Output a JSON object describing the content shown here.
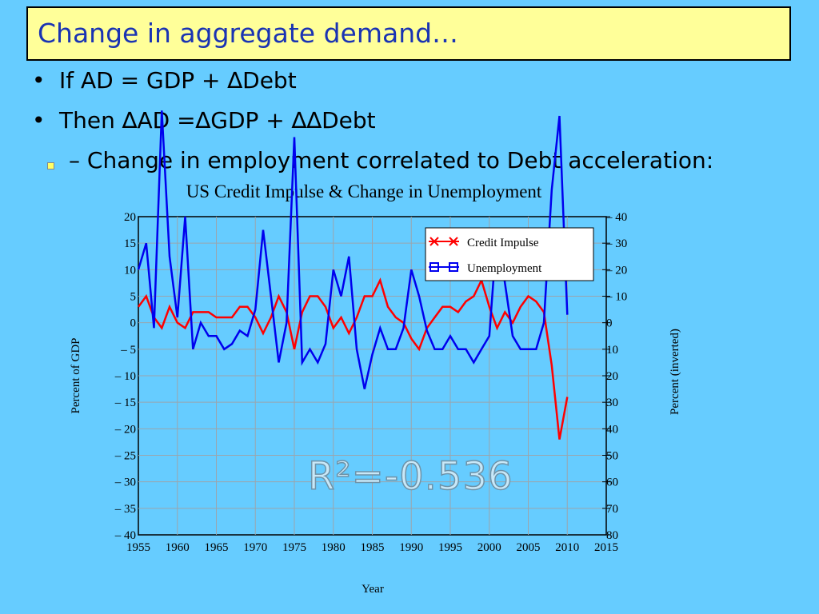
{
  "slide": {
    "title": "Change in aggregate demand…",
    "bullets": [
      "If AD = GDP + ∆Debt",
      "Then ∆AD =∆GDP + ∆∆Debt"
    ],
    "bullet_marker": "•",
    "sub_bullet": "– Change in employment correlated to Debt acceleration:",
    "annotation": "R²=-0.536",
    "colors": {
      "background": "#66ccff",
      "title_box": "#ffff99",
      "title_text": "#1a33b3",
      "credit": "#ff0000",
      "unemployment": "#0000ee",
      "r2": "#c8e8f8"
    }
  },
  "chart_data": {
    "type": "line",
    "title": "US Credit Impulse & Change in Unemployment",
    "xlabel": "Year",
    "ylabel": "Percent of GDP",
    "y2label": "Percent (inverted)",
    "xlim": [
      1955,
      2015
    ],
    "ylim": [
      -40,
      20
    ],
    "y2lim": [
      80,
      -40
    ],
    "x_ticks": [
      "1955",
      "1960",
      "1965",
      "1970",
      "1975",
      "1980",
      "1985",
      "1990",
      "1995",
      "2000",
      "2005",
      "2010",
      "2015"
    ],
    "y_ticks": [
      "20",
      "15",
      "10",
      "5",
      "0",
      "– 5",
      "– 10",
      "– 15",
      "– 20",
      "– 25",
      "– 30",
      "– 35",
      "– 40"
    ],
    "y2_ticks": [
      "– 40",
      "– 30",
      "– 20",
      "– 10",
      "0",
      "10",
      "20",
      "30",
      "40",
      "50",
      "60",
      "70",
      "80"
    ],
    "grid": true,
    "legend_position": "top-right",
    "series": [
      {
        "name": "Credit Impulse",
        "color": "#ff0000",
        "marker": "x",
        "x": [
          1955,
          1956,
          1957,
          1958,
          1959,
          1960,
          1961,
          1962,
          1963,
          1964,
          1965,
          1966,
          1967,
          1968,
          1969,
          1970,
          1971,
          1972,
          1973,
          1974,
          1975,
          1976,
          1977,
          1978,
          1979,
          1980,
          1981,
          1982,
          1983,
          1984,
          1985,
          1986,
          1987,
          1988,
          1989,
          1990,
          1991,
          1992,
          1993,
          1994,
          1995,
          1996,
          1997,
          1998,
          1999,
          2000,
          2001,
          2002,
          2003,
          2004,
          2005,
          2006,
          2007,
          2008,
          2009,
          2010
        ],
        "y": [
          3,
          5,
          1,
          -1,
          3,
          0,
          -1,
          2,
          2,
          2,
          1,
          1,
          1,
          3,
          3,
          1,
          -2,
          1,
          5,
          2,
          -5,
          2,
          5,
          5,
          3,
          -1,
          1,
          -2,
          1,
          5,
          5,
          8,
          3,
          1,
          0,
          -3,
          -5,
          -1,
          1,
          3,
          3,
          2,
          4,
          5,
          8,
          3,
          -1,
          2,
          0,
          3,
          5,
          4,
          2,
          -8,
          -22,
          -14
        ]
      },
      {
        "name": "Unemployment",
        "color": "#0000ee",
        "marker": "square",
        "x": [
          1955,
          1956,
          1957,
          1958,
          1959,
          1960,
          1961,
          1962,
          1963,
          1964,
          1965,
          1966,
          1967,
          1968,
          1969,
          1970,
          1971,
          1972,
          1973,
          1974,
          1975,
          1976,
          1977,
          1978,
          1979,
          1980,
          1981,
          1982,
          1983,
          1984,
          1985,
          1986,
          1987,
          1988,
          1989,
          1990,
          1991,
          1992,
          1993,
          1994,
          1995,
          1996,
          1997,
          1998,
          1999,
          2000,
          2001,
          2002,
          2003,
          2004,
          2005,
          2006,
          2007,
          2008,
          2009,
          2010
        ],
        "y": [
          -20,
          -30,
          2,
          -80,
          -25,
          -2,
          -40,
          10,
          0,
          5,
          5,
          10,
          8,
          3,
          5,
          -5,
          -35,
          -10,
          15,
          0,
          -70,
          15,
          10,
          15,
          8,
          -20,
          -10,
          -25,
          10,
          25,
          12,
          2,
          10,
          10,
          2,
          -20,
          -10,
          3,
          10,
          10,
          5,
          10,
          10,
          15,
          10,
          5,
          -35,
          -15,
          5,
          10,
          10,
          10,
          0,
          -50,
          -78,
          -3
        ]
      }
    ]
  }
}
